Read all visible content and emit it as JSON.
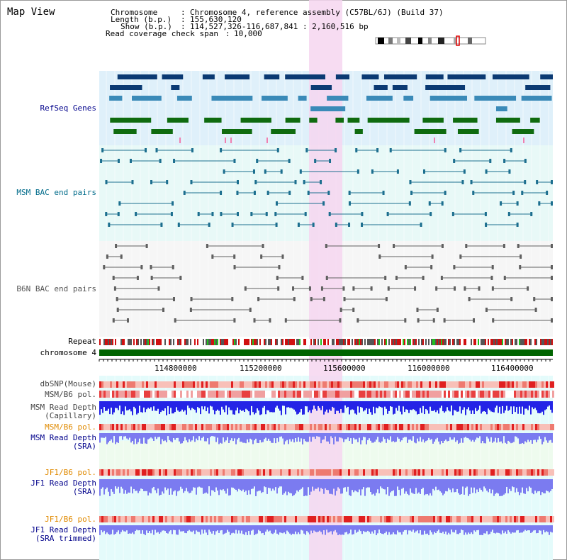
{
  "view_title": "Map View",
  "header": {
    "chromosome_key": "Chromosome",
    "chromosome_value": "Chromosome 4, reference assembly (C57BL/6J) (Build 37)",
    "length_key": "Length (b.p.)",
    "length_value": "155,630,120",
    "show_key": "Show (b.p.)",
    "show_value": "114,527,326-116,687,841 : 2,160,516 bp",
    "coverage_key": "Read coverage check span",
    "coverage_value": "10,000"
  },
  "tracks": {
    "refseq": "RefSeq Genes",
    "msm_bac": "MSM BAC end pairs",
    "b6n_bac": "B6N BAC end pairs",
    "repeat": "Repeat",
    "chromosome": "chromosome 4",
    "dbsnp": "dbSNP(Mouse)",
    "msm_b6_pol_1": "MSM/B6 pol.",
    "msm_depth_cap_1": "MSM Read Depth",
    "msm_depth_cap_2": "(Capillary)",
    "msm_b6_pol_2": "MSM/B6 pol.",
    "msm_depth_sra_1": "MSM Read Depth",
    "msm_depth_sra_2": "(SRA)",
    "jf1_b6_pol_1": "JF1/B6 pol.",
    "jf1_depth_sra_1": "JF1 Read Depth",
    "jf1_depth_sra_2": "(SRA)",
    "jf1_b6_pol_2": "JF1/B6 pol.",
    "jf1_depth_trim_1": "JF1 Read Depth",
    "jf1_depth_trim_2": "(SRA trimmed)"
  },
  "axis": {
    "ticks": [
      "114800000",
      "115200000",
      "115600000",
      "116000000",
      "116400000"
    ]
  },
  "colors": {
    "label_blue": "#00008b",
    "label_teal": "#006b8a",
    "label_orange": "#e08a00",
    "refseq_bg": "#dff0fa",
    "msm_bac_bg": "#e8f9f7",
    "b6n_bac_bg": "#f6f6f6",
    "highlight": "#f6d6f0",
    "chromosome_green": "#006400",
    "depth_blue": "#2424e6",
    "depth_light_blue": "#7b7bf0"
  }
}
